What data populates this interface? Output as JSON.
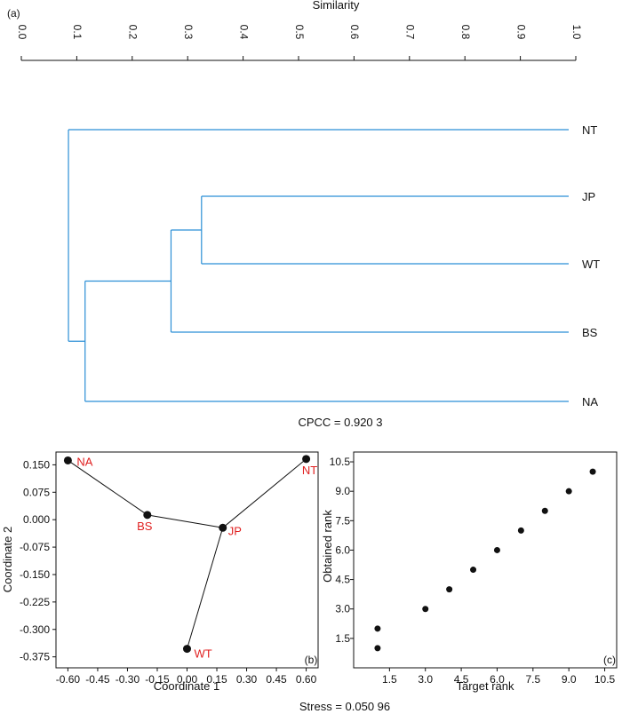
{
  "chart_data": [
    {
      "type": "dendrogram",
      "panel_label": "(a)",
      "title": "Similarity",
      "axis_ticks": [
        "0.0",
        "0.1",
        "0.2",
        "0.3",
        "0.4",
        "0.5",
        "0.6",
        "0.7",
        "0.8",
        "0.9",
        "1.0"
      ],
      "xlim": [
        0,
        1
      ],
      "leaves": [
        "NT",
        "JP",
        "WT",
        "BS",
        "NA"
      ],
      "merges": [
        {
          "members": [
            "JP",
            "WT"
          ],
          "similarity": 0.325
        },
        {
          "members": [
            "JP",
            "WT",
            "BS"
          ],
          "similarity": 0.27
        },
        {
          "members": [
            "JP",
            "WT",
            "BS",
            "NA"
          ],
          "similarity": 0.115
        },
        {
          "members": [
            "JP",
            "WT",
            "BS",
            "NA",
            "NT"
          ],
          "similarity": 0.085
        }
      ],
      "note": "CPCC = 0.920 3"
    },
    {
      "type": "scatter",
      "panel_label": "(b)",
      "xlabel": "Coordinate 1",
      "ylabel": "Coordinate 2",
      "xlim": [
        -0.66,
        0.66
      ],
      "ylim": [
        -0.405,
        0.185
      ],
      "x_ticks": [
        "-0.60",
        "-0.45",
        "-0.30",
        "-0.15",
        "0.00",
        "0.15",
        "0.30",
        "0.45",
        "0.60"
      ],
      "y_ticks": [
        "0.150",
        "0.075",
        "0.000",
        "-0.075",
        "-0.150",
        "-0.225",
        "-0.300",
        "-0.375"
      ],
      "points": [
        {
          "label": "NA",
          "x": -0.6,
          "y": 0.162
        },
        {
          "label": "BS",
          "x": -0.2,
          "y": 0.013
        },
        {
          "label": "JP",
          "x": 0.18,
          "y": -0.022
        },
        {
          "label": "NT",
          "x": 0.6,
          "y": 0.166
        },
        {
          "label": "WT",
          "x": 0.0,
          "y": -0.353
        }
      ],
      "edges": [
        [
          "NA",
          "BS"
        ],
        [
          "BS",
          "JP"
        ],
        [
          "JP",
          "NT"
        ],
        [
          "JP",
          "WT"
        ]
      ],
      "note": "Stress = 0.050 96"
    },
    {
      "type": "scatter",
      "panel_label": "(c)",
      "xlabel": "Target rank",
      "ylabel": "Obtained rank",
      "xlim": [
        0,
        11
      ],
      "ylim": [
        0,
        11
      ],
      "x_ticks": [
        "1.5",
        "3.0",
        "4.5",
        "6.0",
        "7.5",
        "9.0",
        "10.5"
      ],
      "y_ticks": [
        "10.5",
        "9.0",
        "7.5",
        "6.0",
        "4.5",
        "3.0",
        "1.5"
      ],
      "points": [
        {
          "x": 1,
          "y": 1
        },
        {
          "x": 1,
          "y": 2
        },
        {
          "x": 3,
          "y": 3
        },
        {
          "x": 4,
          "y": 4
        },
        {
          "x": 5,
          "y": 5
        },
        {
          "x": 6,
          "y": 6
        },
        {
          "x": 7,
          "y": 7
        },
        {
          "x": 8,
          "y": 8
        },
        {
          "x": 9,
          "y": 9
        },
        {
          "x": 10,
          "y": 10
        }
      ]
    }
  ]
}
